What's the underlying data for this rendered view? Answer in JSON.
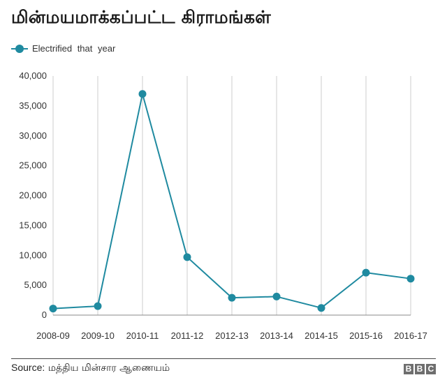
{
  "title": "மின்மயமாக்கப்பட்ட கிராமங்கள்",
  "legend": {
    "label": "Electrified that year"
  },
  "source": {
    "label": "Source:",
    "text": "மத்திய மின்சார ஆணையம்"
  },
  "branding": {
    "letters": [
      "B",
      "B",
      "C"
    ]
  },
  "colors": {
    "series": "#1f8aa0",
    "grid": "#cccccc",
    "axis": "#888888"
  },
  "chart_data": {
    "type": "line",
    "categories": [
      "2008-09",
      "2009-10",
      "2010-11",
      "2011-12",
      "2012-13",
      "2013-14",
      "2014-15",
      "2015-16",
      "2016-17"
    ],
    "series": [
      {
        "name": "Electrified that year",
        "values": [
          1100,
          1500,
          37000,
          9700,
          2900,
          3100,
          1200,
          7100,
          6100
        ]
      }
    ],
    "yticks": [
      "0",
      "5,000",
      "10,000",
      "15,000",
      "20,000",
      "25,000",
      "30,000",
      "35,000",
      "40,000"
    ],
    "ylim": [
      0,
      40000
    ],
    "grid": "vertical",
    "legend_position": "top-left"
  }
}
